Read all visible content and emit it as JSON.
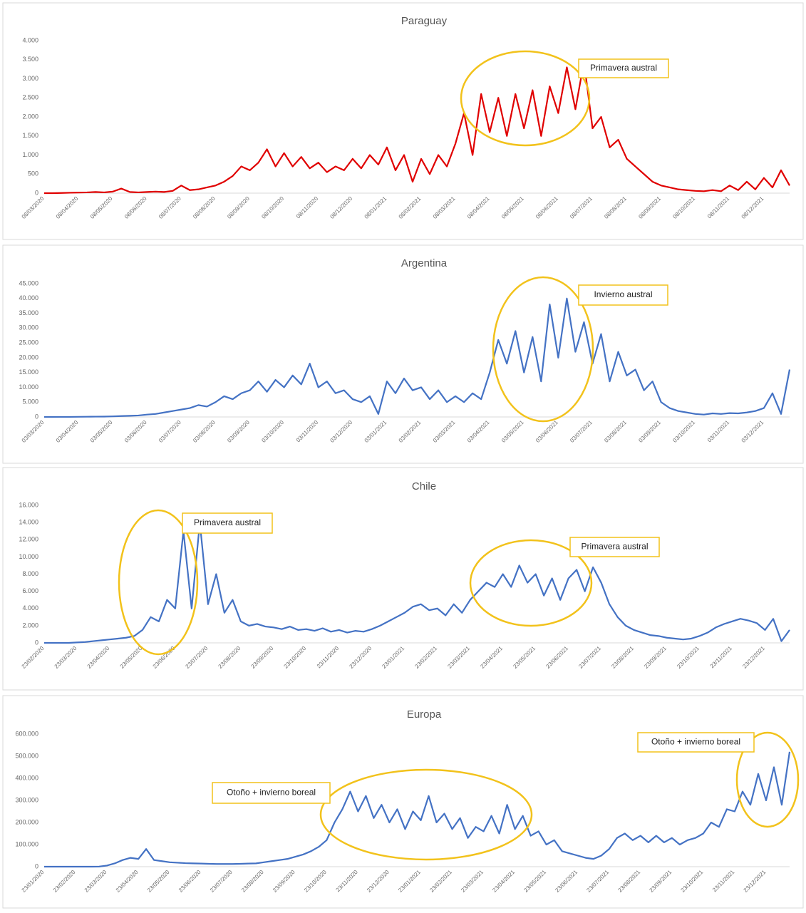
{
  "chart_data": [
    {
      "type": "line",
      "title": "Paraguay",
      "color": "#e00000",
      "ylim": [
        0,
        4000
      ],
      "yticks": [
        0,
        500,
        {
          "value": 1000,
          "label": "1.000"
        },
        {
          "value": 1500,
          "label": "1.500"
        },
        {
          "value": 2000,
          "label": "2.000"
        },
        {
          "value": 2500,
          "label": "2.500"
        },
        {
          "value": 3000,
          "label": "3.000"
        },
        {
          "value": 3500,
          "label": "3.500"
        },
        {
          "value": 4000,
          "label": "4.000"
        }
      ],
      "categories": [
        "08/03/2020",
        null,
        null,
        null,
        "08/04/2020",
        null,
        null,
        null,
        "08/05/2020",
        null,
        null,
        null,
        "08/06/2020",
        null,
        null,
        null,
        "08/07/2020",
        null,
        null,
        null,
        "08/08/2020",
        null,
        null,
        null,
        "08/09/2020",
        null,
        null,
        null,
        "08/10/2020",
        null,
        null,
        null,
        "08/11/2020",
        null,
        null,
        null,
        "08/12/2020",
        null,
        null,
        null,
        "08/01/2021",
        null,
        null,
        null,
        "08/02/2021",
        null,
        null,
        null,
        "08/03/2021",
        null,
        null,
        null,
        "08/04/2021",
        null,
        null,
        null,
        "08/05/2021",
        null,
        null,
        null,
        "08/06/2021",
        null,
        null,
        null,
        "08/07/2021",
        null,
        null,
        null,
        "08/08/2021",
        null,
        null,
        null,
        "08/09/2021",
        null,
        null,
        null,
        "08/10/2021",
        null,
        null,
        null,
        "08/11/2021",
        null,
        null,
        null,
        "08/12/2021",
        null,
        null,
        null
      ],
      "values": [
        0,
        0,
        5,
        10,
        15,
        20,
        30,
        20,
        40,
        120,
        30,
        20,
        30,
        40,
        30,
        60,
        200,
        80,
        100,
        150,
        200,
        300,
        450,
        700,
        600,
        800,
        1150,
        700,
        1050,
        700,
        950,
        650,
        800,
        550,
        700,
        600,
        900,
        650,
        1000,
        750,
        1200,
        600,
        1000,
        300,
        900,
        500,
        1000,
        700,
        1300,
        2100,
        1000,
        2600,
        1600,
        2500,
        1500,
        2600,
        1700,
        2700,
        1500,
        2800,
        2100,
        3300,
        2200,
        3450,
        1700,
        2000,
        1200,
        1400,
        900,
        700,
        500,
        300,
        200,
        150,
        100,
        80,
        60,
        50,
        80,
        50,
        200,
        80,
        300,
        100,
        400,
        150,
        600,
        200
      ],
      "annotations": [
        {
          "text": "Primavera austral"
        }
      ]
    },
    {
      "type": "line",
      "title": "Argentina",
      "color": "#4472c4",
      "ylim": [
        0,
        45000
      ],
      "yticks": [
        0,
        {
          "value": 5000,
          "label": "5.000"
        },
        {
          "value": 10000,
          "label": "10.000"
        },
        {
          "value": 15000,
          "label": "15.000"
        },
        {
          "value": 20000,
          "label": "20.000"
        },
        {
          "value": 25000,
          "label": "25.000"
        },
        {
          "value": 30000,
          "label": "30.000"
        },
        {
          "value": 35000,
          "label": "35.000"
        },
        {
          "value": 40000,
          "label": "40.000"
        },
        {
          "value": 45000,
          "label": "45.000"
        }
      ],
      "categories": [
        "03/03/2020",
        null,
        null,
        null,
        "03/04/2020",
        null,
        null,
        null,
        "03/05/2020",
        null,
        null,
        null,
        "03/06/2020",
        null,
        null,
        null,
        "03/07/2020",
        null,
        null,
        null,
        "03/08/2020",
        null,
        null,
        null,
        "03/09/2020",
        null,
        null,
        null,
        "03/10/2020",
        null,
        null,
        null,
        "03/11/2020",
        null,
        null,
        null,
        "03/12/2020",
        null,
        null,
        null,
        "03/01/2021",
        null,
        null,
        null,
        "03/02/2021",
        null,
        null,
        null,
        "03/03/2021",
        null,
        null,
        null,
        "03/04/2021",
        null,
        null,
        null,
        "03/05/2021",
        null,
        null,
        null,
        "03/06/2021",
        null,
        null,
        null,
        "03/07/2021",
        null,
        null,
        null,
        "03/08/2021",
        null,
        null,
        null,
        "03/09/2021",
        null,
        null,
        null,
        "03/10/2021",
        null,
        null,
        null,
        "03/11/2021",
        null,
        null,
        null,
        "03/12/2021",
        null,
        null,
        null
      ],
      "values": [
        0,
        0,
        10,
        20,
        50,
        80,
        100,
        120,
        200,
        300,
        400,
        500,
        800,
        1000,
        1500,
        2000,
        2500,
        3000,
        4000,
        3500,
        5000,
        7000,
        6000,
        8000,
        9000,
        12000,
        8500,
        12500,
        10000,
        14000,
        11000,
        18000,
        10000,
        12000,
        8000,
        9000,
        6000,
        5000,
        7000,
        1000,
        12000,
        8000,
        13000,
        9000,
        10000,
        6000,
        9000,
        5000,
        7000,
        5000,
        8000,
        6000,
        15000,
        26000,
        18000,
        29000,
        15000,
        27000,
        12000,
        38000,
        20000,
        40000,
        22000,
        32000,
        18000,
        28000,
        12000,
        22000,
        14000,
        16000,
        9000,
        12000,
        5000,
        3000,
        2000,
        1500,
        1000,
        800,
        1200,
        1000,
        1300,
        1200,
        1500,
        2000,
        3000,
        8000,
        1000,
        16000
      ],
      "annotations": [
        {
          "text": "Invierno austral"
        }
      ]
    },
    {
      "type": "line",
      "title": "Chile",
      "color": "#4472c4",
      "ylim": [
        0,
        16000
      ],
      "yticks": [
        0,
        {
          "value": 2000,
          "label": "2.000"
        },
        {
          "value": 4000,
          "label": "4.000"
        },
        {
          "value": 6000,
          "label": "6.000"
        },
        {
          "value": 8000,
          "label": "8.000"
        },
        {
          "value": 10000,
          "label": "10.000"
        },
        {
          "value": 12000,
          "label": "12.000"
        },
        {
          "value": 14000,
          "label": "14.000"
        },
        {
          "value": 16000,
          "label": "16.000"
        }
      ],
      "categories": [
        "23/02/2020",
        null,
        null,
        null,
        "23/03/2020",
        null,
        null,
        null,
        "23/04/2020",
        null,
        null,
        null,
        "23/05/2020",
        null,
        null,
        null,
        "23/06/2020",
        null,
        null,
        null,
        "23/07/2020",
        null,
        null,
        null,
        "23/08/2020",
        null,
        null,
        null,
        "23/09/2020",
        null,
        null,
        null,
        "23/10/2020",
        null,
        null,
        null,
        "23/11/2020",
        null,
        null,
        null,
        "23/12/2020",
        null,
        null,
        null,
        "23/01/2021",
        null,
        null,
        null,
        "23/02/2021",
        null,
        null,
        null,
        "23/03/2021",
        null,
        null,
        null,
        "23/04/2021",
        null,
        null,
        null,
        "23/05/2021",
        null,
        null,
        null,
        "23/06/2021",
        null,
        null,
        null,
        "23/07/2021",
        null,
        null,
        null,
        "23/08/2021",
        null,
        null,
        null,
        "23/09/2021",
        null,
        null,
        null,
        "23/10/2021",
        null,
        null,
        null,
        "23/11/2021",
        null,
        null,
        null,
        "23/12/2021",
        null,
        null,
        null
      ],
      "values": [
        0,
        0,
        0,
        0,
        50,
        100,
        200,
        300,
        400,
        500,
        600,
        800,
        1500,
        3000,
        2500,
        5000,
        4000,
        13000,
        4000,
        14000,
        4500,
        8000,
        3500,
        5000,
        2500,
        2000,
        2200,
        1900,
        1800,
        1600,
        1900,
        1500,
        1600,
        1400,
        1700,
        1300,
        1500,
        1200,
        1400,
        1300,
        1600,
        2000,
        2500,
        3000,
        3500,
        4200,
        4500,
        3800,
        4000,
        3200,
        4500,
        3500,
        5000,
        6000,
        7000,
        6500,
        8000,
        6500,
        9000,
        7000,
        8000,
        5500,
        7500,
        5000,
        7500,
        8500,
        6000,
        8800,
        7000,
        4500,
        3000,
        2000,
        1500,
        1200,
        900,
        800,
        600,
        500,
        400,
        500,
        800,
        1200,
        1800,
        2200,
        2500,
        2800,
        2600,
        2300,
        1500,
        2800,
        200,
        1500
      ],
      "annotations": [
        {
          "text": "Primavera austral"
        },
        {
          "text": "Primavera austral"
        }
      ]
    },
    {
      "type": "line",
      "title": "Europa",
      "color": "#4472c4",
      "ylim": [
        0,
        600000
      ],
      "yticks": [
        0,
        {
          "value": 100000,
          "label": "100.000"
        },
        {
          "value": 200000,
          "label": "200.000"
        },
        {
          "value": 300000,
          "label": "300.000"
        },
        {
          "value": 400000,
          "label": "400.000"
        },
        {
          "value": 500000,
          "label": "500.000"
        },
        {
          "value": 600000,
          "label": "600.000"
        }
      ],
      "categories": [
        "23/01/2020",
        null,
        null,
        null,
        "23/02/2020",
        null,
        null,
        null,
        "23/03/2020",
        null,
        null,
        null,
        "23/04/2020",
        null,
        null,
        null,
        "23/05/2020",
        null,
        null,
        null,
        "23/06/2020",
        null,
        null,
        null,
        "23/07/2020",
        null,
        null,
        null,
        "23/08/2020",
        null,
        null,
        null,
        "23/09/2020",
        null,
        null,
        null,
        "23/10/2020",
        null,
        null,
        null,
        "23/11/2020",
        null,
        null,
        null,
        "23/12/2020",
        null,
        null,
        null,
        "23/01/2021",
        null,
        null,
        null,
        "23/02/2021",
        null,
        null,
        null,
        "23/03/2021",
        null,
        null,
        null,
        "23/04/2021",
        null,
        null,
        null,
        "23/05/2021",
        null,
        null,
        null,
        "23/06/2021",
        null,
        null,
        null,
        "23/07/2021",
        null,
        null,
        null,
        "23/08/2021",
        null,
        null,
        null,
        "23/09/2021",
        null,
        null,
        null,
        "23/10/2021",
        null,
        null,
        null,
        "23/11/2021",
        null,
        null,
        null,
        "23/12/2021",
        null,
        null,
        null
      ],
      "values": [
        0,
        0,
        0,
        0,
        0,
        0,
        100,
        500,
        5000,
        15000,
        30000,
        40000,
        35000,
        80000,
        30000,
        25000,
        20000,
        18000,
        16000,
        15000,
        14000,
        13000,
        12000,
        12000,
        12000,
        13000,
        14000,
        15000,
        20000,
        25000,
        30000,
        35000,
        45000,
        55000,
        70000,
        90000,
        120000,
        200000,
        260000,
        340000,
        250000,
        320000,
        220000,
        280000,
        200000,
        260000,
        170000,
        250000,
        210000,
        320000,
        200000,
        240000,
        170000,
        220000,
        130000,
        180000,
        160000,
        230000,
        150000,
        280000,
        170000,
        230000,
        140000,
        160000,
        100000,
        120000,
        70000,
        60000,
        50000,
        40000,
        35000,
        50000,
        80000,
        130000,
        150000,
        120000,
        140000,
        110000,
        140000,
        110000,
        130000,
        100000,
        120000,
        130000,
        150000,
        200000,
        180000,
        260000,
        250000,
        340000,
        280000,
        420000,
        300000,
        450000,
        280000,
        520000
      ],
      "annotations": [
        {
          "text": "Otoño + invierno boreal"
        },
        {
          "text": "Otoño + invierno boreal"
        }
      ]
    }
  ]
}
